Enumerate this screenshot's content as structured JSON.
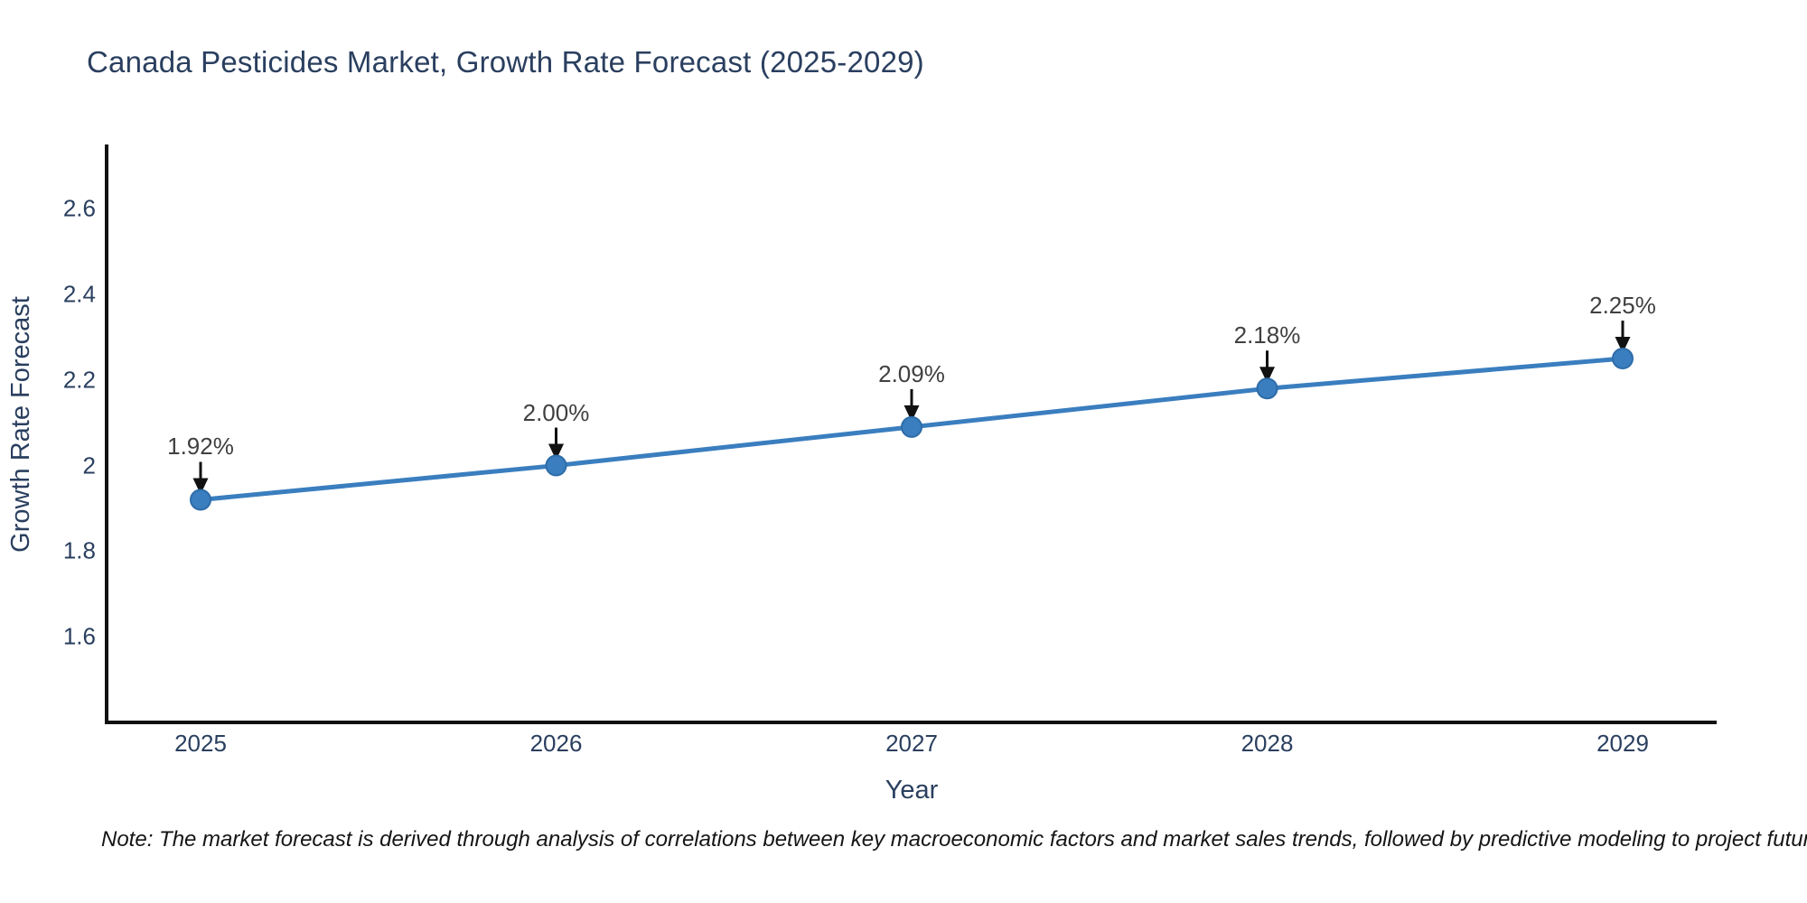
{
  "title": "Canada Pesticides Market, Growth Rate Forecast (2025-2029)",
  "note": "Note: The market forecast is derived through analysis of correlations between key macroeconomic factors and market sales trends, followed by predictive modeling to project future sales",
  "colors": {
    "background": "#ffffff",
    "line": "#3a7ebf",
    "marker_fill": "#3a7ebf",
    "marker_edge": "#2e6ca8",
    "axis_line": "#111111",
    "axis_text": "#2a3f5f",
    "annotation_text": "#404040",
    "arrow": "#111111"
  },
  "chart_data": {
    "type": "line",
    "title": "Canada Pesticides Market, Growth Rate Forecast (2025-2029)",
    "xlabel": "Year",
    "ylabel": "Growth Rate Forecast",
    "x": [
      2025,
      2026,
      2027,
      2028,
      2029
    ],
    "y": [
      1.92,
      2.0,
      2.09,
      2.18,
      2.25
    ],
    "point_labels": [
      "1.92%",
      "2.00%",
      "2.09%",
      "2.18%",
      "2.25%"
    ],
    "xticks": [
      "2025",
      "2026",
      "2027",
      "2028",
      "2029"
    ],
    "yticks": [
      2.6,
      2.4,
      2.2,
      2,
      1.8,
      1.6
    ],
    "ylim": [
      1.4,
      2.75
    ],
    "grid": false,
    "legend_position": "none",
    "annotation_style": "arrow-down",
    "marker": "circle"
  }
}
